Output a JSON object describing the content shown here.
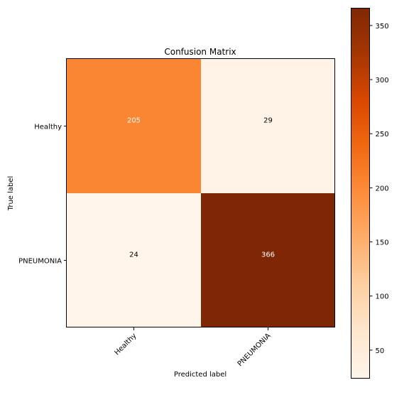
{
  "chart_data": {
    "type": "heatmap",
    "title": "Confusion Matrix",
    "xlabel": "Predicted label",
    "ylabel": "True label",
    "x_categories": [
      "Healthy",
      "PNEUMONIA"
    ],
    "y_categories": [
      "Healthy",
      "PNEUMONIA"
    ],
    "values": [
      [
        205,
        29
      ],
      [
        24,
        366
      ]
    ],
    "colormap": "Oranges",
    "colorbar": {
      "range": [
        24,
        366
      ],
      "ticks": [
        50,
        100,
        150,
        200,
        250,
        300,
        350
      ]
    },
    "grid": false
  }
}
